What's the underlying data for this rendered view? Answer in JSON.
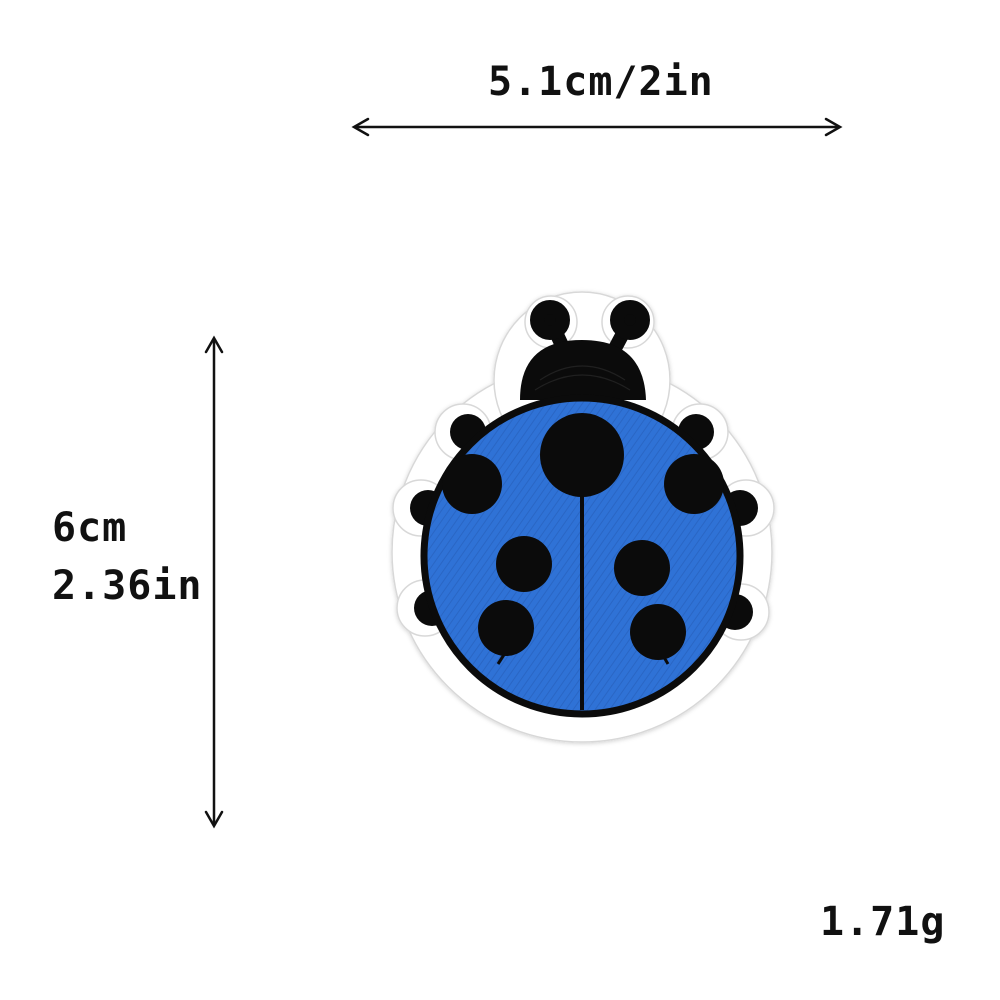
{
  "measurements": {
    "width_label": "5.1cm/2in",
    "height_label_cm": "6cm",
    "height_label_in": "2.36in",
    "weight_label": "1.71g"
  },
  "product": {
    "image_description_icon": "ladybug-patch",
    "colors": {
      "shell": "#2f72d6",
      "shell_dark": "#1e57b8",
      "spots": "#0b0b0b",
      "border": "#ffffff",
      "background": "#ffffff",
      "arrow": "#111111"
    }
  }
}
